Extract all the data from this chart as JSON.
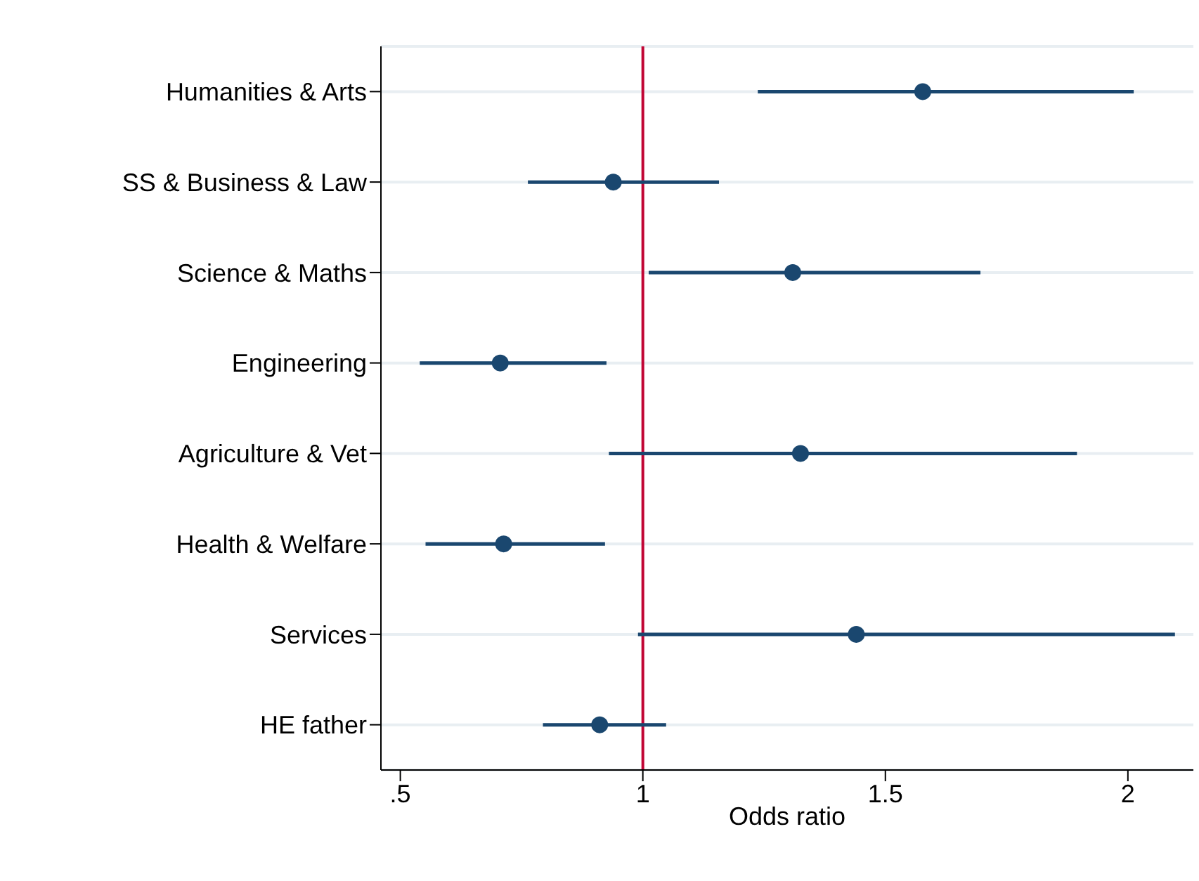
{
  "chart_data": {
    "type": "scatter",
    "orientation": "horizontal",
    "xlabel": "Odds ratio",
    "categories": [
      "Humanities & Arts",
      "SS & Business & Law",
      "Science & Maths",
      "Engineering",
      "Agriculture & Vet",
      "Health & Welfare",
      "Services",
      "HE father"
    ],
    "values": [
      1.577,
      0.939,
      1.309,
      0.706,
      1.325,
      0.713,
      1.44,
      0.911
    ],
    "errors": [
      [
        1.237,
        2.012
      ],
      [
        0.763,
        1.157
      ],
      [
        1.012,
        1.696
      ],
      [
        0.54,
        0.925
      ],
      [
        0.93,
        1.895
      ],
      [
        0.552,
        0.922
      ],
      [
        0.99,
        2.097
      ],
      [
        0.794,
        1.048
      ]
    ],
    "color": "#1a476f",
    "marker": "circle",
    "xlim": [
      0.46,
      2.135
    ],
    "xticks": [
      {
        "value": 0.5,
        "label": ".5"
      },
      1,
      1.5,
      2
    ],
    "ref_lines": [
      {
        "axis": "x",
        "value": 1,
        "label": null,
        "color": "#c10534"
      }
    ],
    "grid": "y"
  }
}
